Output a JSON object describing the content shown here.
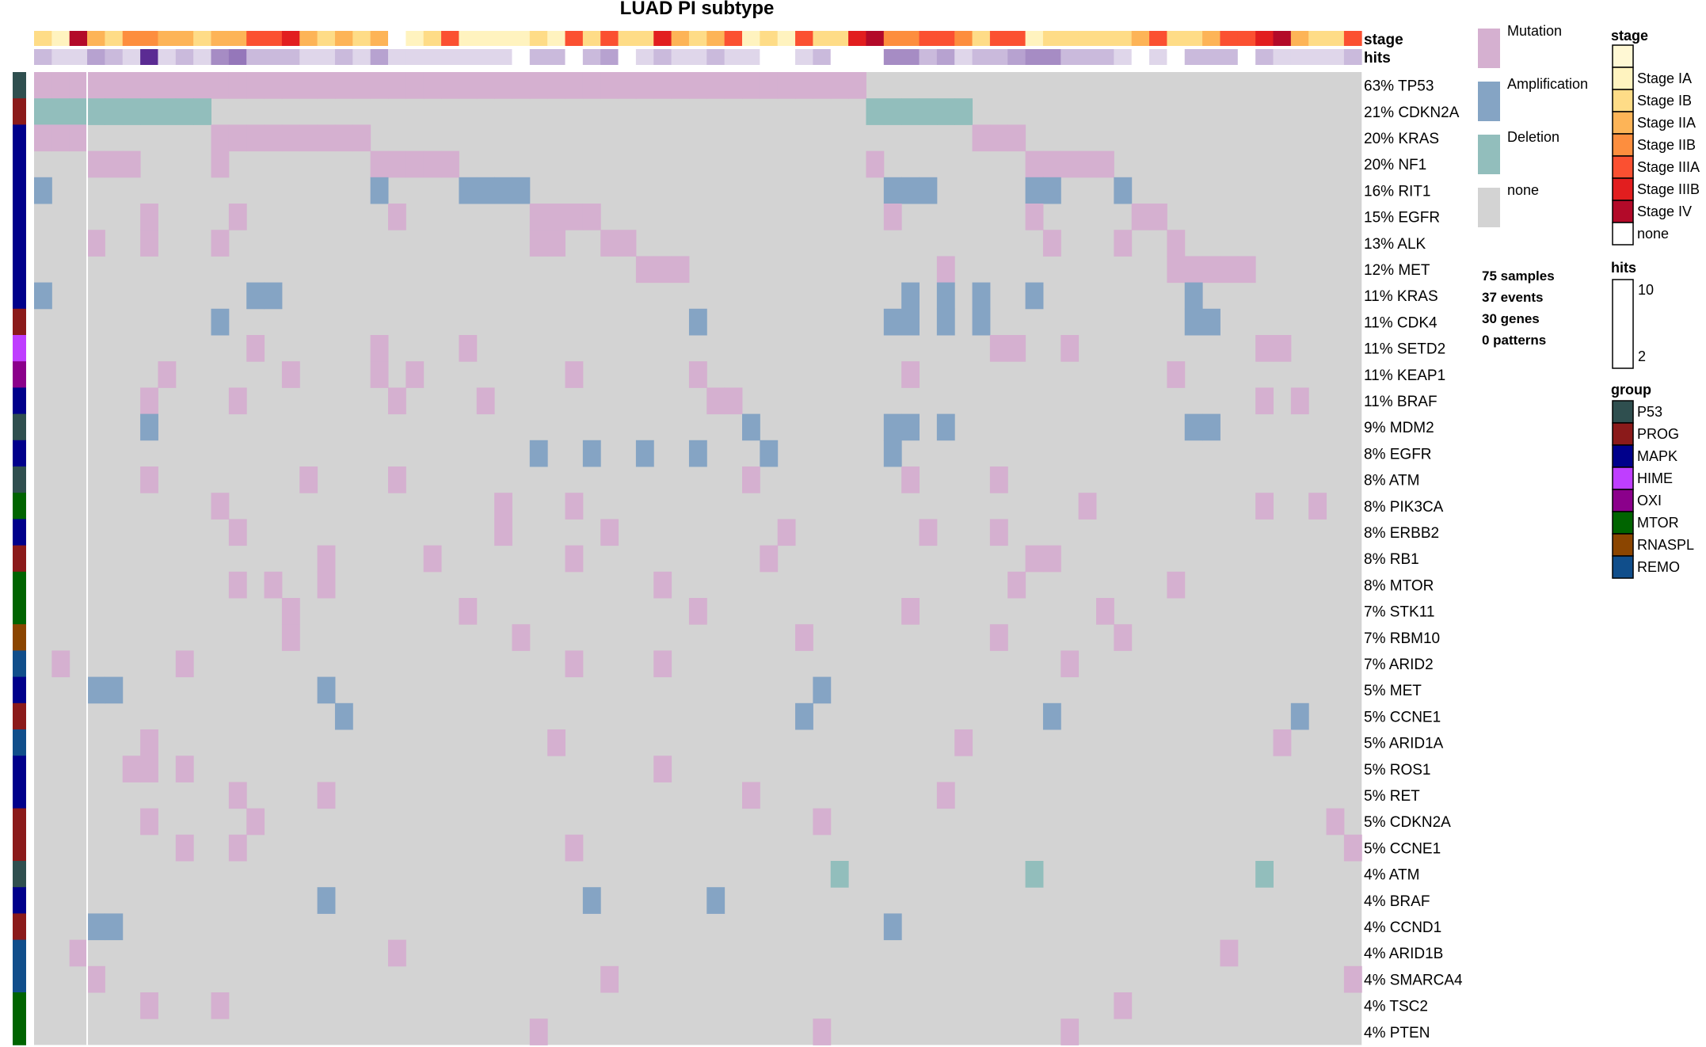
{
  "chart_data": {
    "type": "heatmap",
    "title": "LUAD PI subtype",
    "n_samples": 75,
    "annotation_labels": {
      "stage": "stage",
      "hits": "hits"
    },
    "rows": [
      {
        "pct": "63%",
        "gene": "TP53",
        "group": "P53",
        "type": "Mutation",
        "cols": "0-46"
      },
      {
        "pct": "21%",
        "gene": "CDKN2A",
        "group": "PROG",
        "type": "Deletion",
        "cols": "0-9,47-52"
      },
      {
        "pct": "20%",
        "gene": "KRAS",
        "group": "MAPK",
        "type": "Mutation",
        "cols": "0-2,10-18,53-55"
      },
      {
        "pct": "20%",
        "gene": "NF1",
        "group": "MAPK",
        "type": "Mutation",
        "cols": "3-5,10,19-23,47,56-60"
      },
      {
        "pct": "16%",
        "gene": "RIT1",
        "group": "MAPK",
        "type": "Amplification",
        "cols": "0,19,24-27,48-50,56-57,61"
      },
      {
        "pct": "15%",
        "gene": "EGFR",
        "group": "MAPK",
        "type": "Mutation",
        "cols": "6,11,20,28-31,48,56,62-63"
      },
      {
        "pct": "13%",
        "gene": "ALK",
        "group": "MAPK",
        "type": "Mutation",
        "cols": "3,6,10,28-29,32-33,57,61,64"
      },
      {
        "pct": "12%",
        "gene": "MET",
        "group": "MAPK",
        "type": "Mutation",
        "cols": "34-36,51,64-68"
      },
      {
        "pct": "11%",
        "gene": "KRAS",
        "group": "MAPK",
        "type": "Amplification",
        "cols": "0,12-13,49,51,53,56,65"
      },
      {
        "pct": "11%",
        "gene": "CDK4",
        "group": "PROG",
        "type": "Amplification",
        "cols": "10,37,48-49,51,53,65-66"
      },
      {
        "pct": "11%",
        "gene": "SETD2",
        "group": "HIME",
        "type": "Mutation",
        "cols": "12,19,24,54-55,58,69-70"
      },
      {
        "pct": "11%",
        "gene": "KEAP1",
        "group": "OXI",
        "type": "Mutation",
        "cols": "7,14,19,21,30,37,49,64"
      },
      {
        "pct": "11%",
        "gene": "BRAF",
        "group": "MAPK",
        "type": "Mutation",
        "cols": "6,11,20,25,38-39,69,71"
      },
      {
        "pct": "9%",
        "gene": "MDM2",
        "group": "P53",
        "type": "Amplification",
        "cols": "6,40,48-49,51,65-66"
      },
      {
        "pct": "8%",
        "gene": "EGFR",
        "group": "MAPK",
        "type": "Amplification",
        "cols": "28,31,34,37,41,48"
      },
      {
        "pct": "8%",
        "gene": "ATM",
        "group": "P53",
        "type": "Mutation",
        "cols": "6,15,20,40,49,54"
      },
      {
        "pct": "8%",
        "gene": "PIK3CA",
        "group": "MTOR",
        "type": "Mutation",
        "cols": "10,26,30,59,69,72"
      },
      {
        "pct": "8%",
        "gene": "ERBB2",
        "group": "MAPK",
        "type": "Mutation",
        "cols": "11,26,32,42,50,54"
      },
      {
        "pct": "8%",
        "gene": "RB1",
        "group": "PROG",
        "type": "Mutation",
        "cols": "16,22,30,41,56-57"
      },
      {
        "pct": "8%",
        "gene": "MTOR",
        "group": "MTOR",
        "type": "Mutation",
        "cols": "11,13,16,35,55,64"
      },
      {
        "pct": "7%",
        "gene": "STK11",
        "group": "MTOR",
        "type": "Mutation",
        "cols": "14,24,37,49,60"
      },
      {
        "pct": "7%",
        "gene": "RBM10",
        "group": "RNASPL",
        "type": "Mutation",
        "cols": "14,27,43,54,61"
      },
      {
        "pct": "7%",
        "gene": "ARID2",
        "group": "REMO",
        "type": "Mutation",
        "cols": "1,8,30,35,58"
      },
      {
        "pct": "5%",
        "gene": "MET",
        "group": "MAPK",
        "type": "Amplification",
        "cols": "3-4,16,44"
      },
      {
        "pct": "5%",
        "gene": "CCNE1",
        "group": "PROG",
        "type": "Amplification",
        "cols": "17,43,57,71"
      },
      {
        "pct": "5%",
        "gene": "ARID1A",
        "group": "REMO",
        "type": "Mutation",
        "cols": "6,29,52,70"
      },
      {
        "pct": "5%",
        "gene": "ROS1",
        "group": "MAPK",
        "type": "Mutation",
        "cols": "5-6,8,35"
      },
      {
        "pct": "5%",
        "gene": "RET",
        "group": "MAPK",
        "type": "Mutation",
        "cols": "11,16,40,51"
      },
      {
        "pct": "5%",
        "gene": "CDKN2A",
        "group": "PROG",
        "type": "Mutation",
        "cols": "6,12,44,73"
      },
      {
        "pct": "5%",
        "gene": "CCNE1",
        "group": "PROG",
        "type": "Mutation",
        "cols": "8,11,30,74"
      },
      {
        "pct": "4%",
        "gene": "ATM",
        "group": "P53",
        "type": "Deletion",
        "cols": "45,56,69"
      },
      {
        "pct": "4%",
        "gene": "BRAF",
        "group": "MAPK",
        "type": "Amplification",
        "cols": "16,31,38"
      },
      {
        "pct": "4%",
        "gene": "CCND1",
        "group": "PROG",
        "type": "Amplification",
        "cols": "3-4,48"
      },
      {
        "pct": "4%",
        "gene": "ARID1B",
        "group": "REMO",
        "type": "Mutation",
        "cols": "2,20,67"
      },
      {
        "pct": "4%",
        "gene": "SMARCA4",
        "group": "REMO",
        "type": "Mutation",
        "cols": "3,32,74"
      },
      {
        "pct": "4%",
        "gene": "TSC2",
        "group": "MTOR",
        "type": "Mutation",
        "cols": "6,10,61"
      },
      {
        "pct": "4%",
        "gene": "PTEN",
        "group": "MTOR",
        "type": "Mutation",
        "cols": "28,44,58"
      }
    ],
    "stage": [
      "IB",
      "IA",
      "IV",
      "IIA",
      "IB",
      "IIB",
      "IIB",
      "IIA",
      "IIA",
      "IB",
      "IIA",
      "IIA",
      "IIIA",
      "IIIA",
      "IIIB",
      "IIA",
      "IB",
      "IIA",
      "IB",
      "IIA",
      "none",
      "IA",
      "IB",
      "IIIA",
      "IA",
      "IA",
      "IA",
      "IA",
      "IB",
      "IA",
      "IIIA",
      "IB",
      "IIIA",
      "IB",
      "IB",
      "IIIB",
      "IIA",
      "IB",
      "IIA",
      "IIIA",
      "IA",
      "IB",
      "IA",
      "IIIA",
      "IB",
      "IB",
      "IIIB",
      "IV",
      "IIB",
      "IIB",
      "IIIA",
      "IIIA",
      "IIB",
      "IB",
      "IIIA",
      "IIIA",
      "IA",
      "IB",
      "IB",
      "IB",
      "IB",
      "IB",
      "IIA",
      "IIIA",
      "IB",
      "IB",
      "IIA",
      "IIIA",
      "IIIA",
      "IIIB",
      "IV",
      "IIA",
      "IB",
      "IB",
      "IIIA"
    ],
    "hits": [
      3,
      2,
      2,
      4,
      3,
      2,
      10,
      2,
      3,
      2,
      5,
      6,
      3,
      3,
      3,
      2,
      2,
      3,
      2,
      4,
      2,
      2,
      2,
      2,
      2,
      2,
      2,
      1,
      3,
      3,
      1,
      3,
      4,
      1,
      2,
      3,
      2,
      2,
      3,
      2,
      2,
      1,
      1,
      2,
      3,
      1,
      1,
      1,
      5,
      5,
      3,
      4,
      2,
      3,
      3,
      4,
      5,
      5,
      3,
      3,
      3,
      2,
      1,
      2,
      1,
      3,
      3,
      3,
      1,
      3,
      2,
      2,
      2,
      2,
      3
    ],
    "legends": {
      "alteration": [
        {
          "label": "Mutation",
          "color": "#d5b0d0"
        },
        {
          "label": "Amplification",
          "color": "#85a4c4"
        },
        {
          "label": "Deletion",
          "color": "#92bebc"
        },
        {
          "label": "none",
          "color": "#d3d3d3"
        }
      ],
      "stage_title": "stage",
      "stage": [
        {
          "key": "IA",
          "label": "Stage IA",
          "color": "#fff3bf"
        },
        {
          "key": "IB",
          "label": "Stage IB",
          "color": "#fedc87"
        },
        {
          "key": "IIA",
          "label": "Stage IIA",
          "color": "#fdb457"
        },
        {
          "key": "IIB",
          "label": "Stage IIB",
          "color": "#fd8e3e"
        },
        {
          "key": "IIIA",
          "label": "Stage IIIA",
          "color": "#fb5031"
        },
        {
          "key": "IIIB",
          "label": "Stage IIIB",
          "color": "#e21e1f"
        },
        {
          "key": "IV",
          "label": "Stage IV",
          "color": "#b30a29"
        },
        {
          "key": "none",
          "label": "none",
          "color": "#ffffff"
        }
      ],
      "hits_title": "hits",
      "hits_range": [
        2,
        10
      ],
      "hits_colors": [
        "#ffffff",
        "#5b2b93"
      ],
      "group_title": "group",
      "group": [
        {
          "label": "P53",
          "color": "#2f4f4f"
        },
        {
          "label": "PROG",
          "color": "#8b1a1a"
        },
        {
          "label": "MAPK",
          "color": "#00008b"
        },
        {
          "label": "HIME",
          "color": "#bf3eff"
        },
        {
          "label": "OXI",
          "color": "#8b008b"
        },
        {
          "label": "MTOR",
          "color": "#006400"
        },
        {
          "label": "RNASPL",
          "color": "#8b4500"
        },
        {
          "label": "REMO",
          "color": "#104e8b"
        }
      ]
    },
    "stats": [
      "75 samples",
      "37 events",
      "30 genes",
      "0 patterns"
    ]
  }
}
